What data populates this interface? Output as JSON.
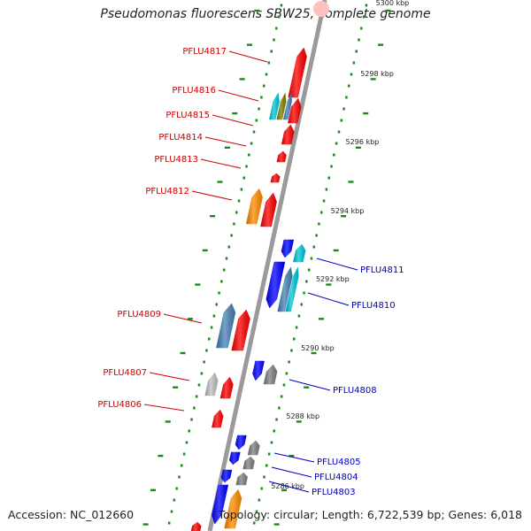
{
  "title": "Pseudomonas fluorescens SBW25, complete genome",
  "footer": {
    "accession": "Accession: NC_012660",
    "summary": "Topology: circular; Length: 6,722,539 bp; Genes: 6,018"
  },
  "colors": {
    "backbone": "#9a9a9a",
    "tick": "#1a8a1a",
    "forward_label": "#cc0000",
    "reverse_label": "#0000bb",
    "red": "#ff0000",
    "blue": "#0000ff",
    "cyan": "#00c8d8",
    "steelblue": "#4682b4",
    "orange": "#ff8c00",
    "gray": "#808080",
    "lightgray": "#c0c0c0",
    "olive": "#808000",
    "pink": "#ffc0c0"
  },
  "coordinate_labels": [
    "5300 kbp",
    "5298 kbp",
    "5296 kbp",
    "5294 kbp",
    "5292 kbp",
    "5290 kbp",
    "5288 kbp",
    "5286 kbp"
  ],
  "gene_labels": {
    "forward": [
      "PFLU4817",
      "PFLU4816",
      "PFLU4815",
      "PFLU4814",
      "PFLU4813",
      "PFLU4812",
      "PFLU4809",
      "PFLU4807",
      "PFLU4806"
    ],
    "reverse": [
      "PFLU4811",
      "PFLU4810",
      "PFLU4808",
      "PFLU4805",
      "PFLU4804",
      "PFLU4803"
    ]
  }
}
